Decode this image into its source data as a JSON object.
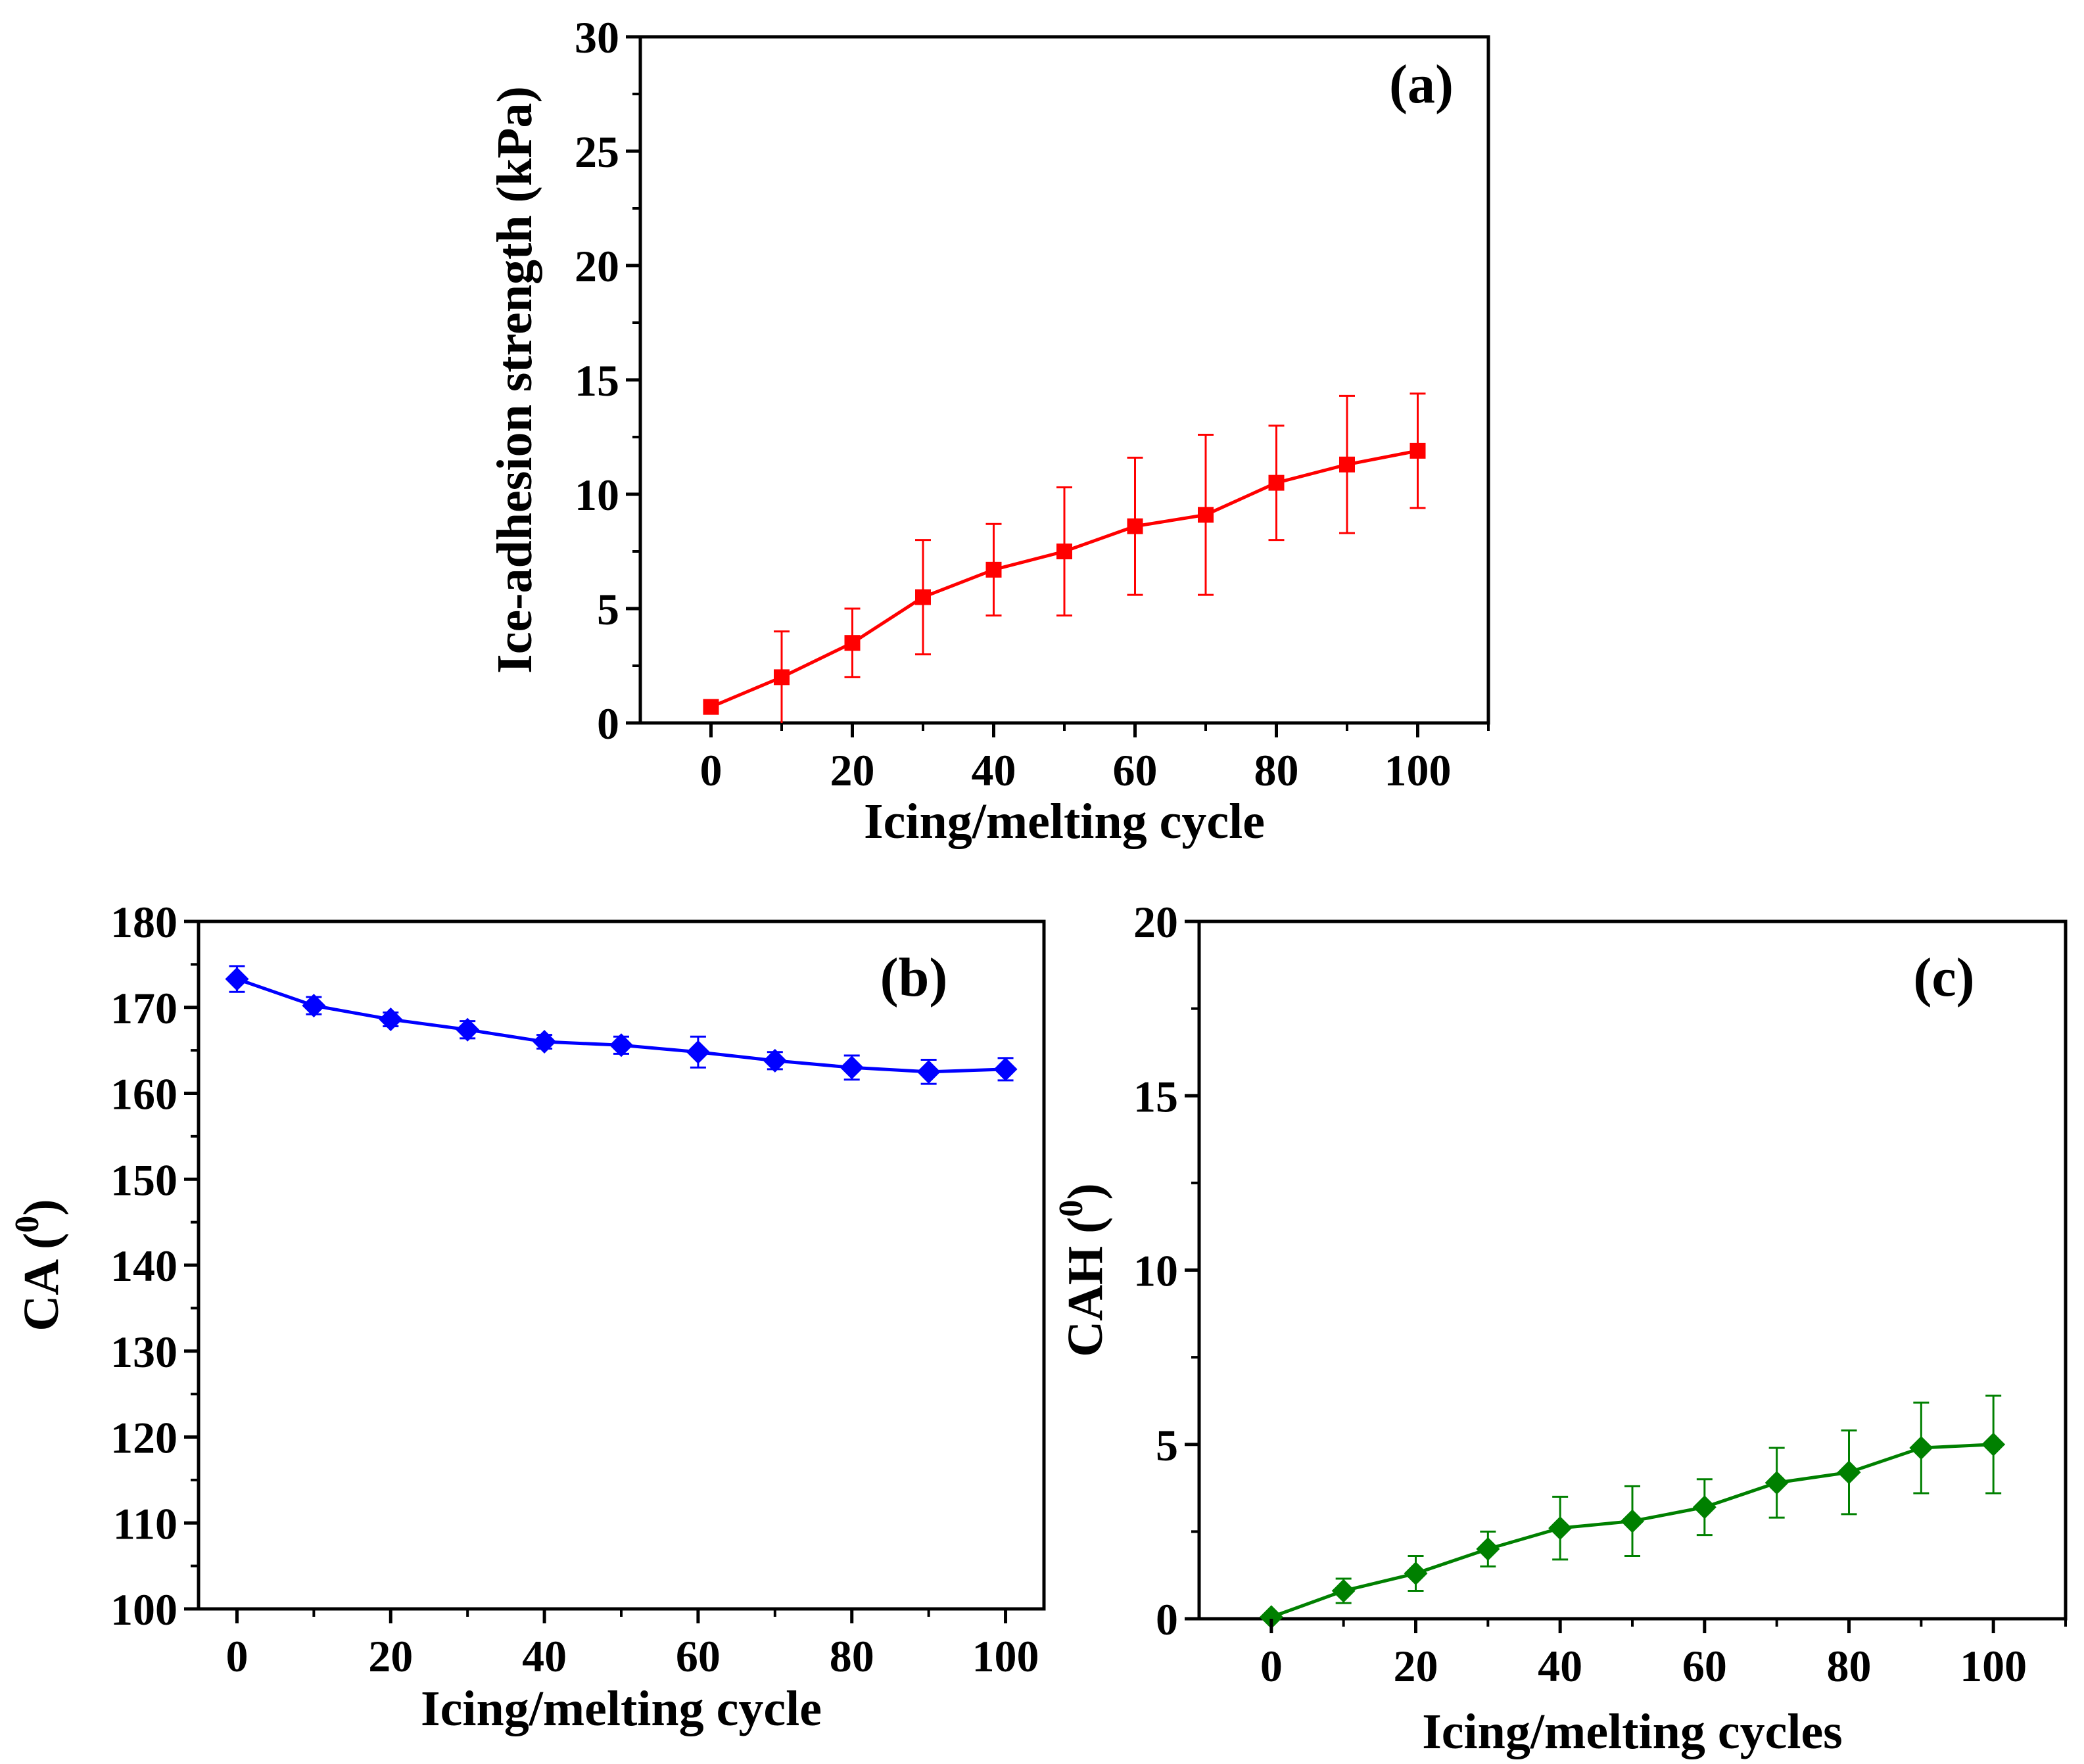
{
  "colors": {
    "panel_a": "#ff0000",
    "panel_b": "#0000ff",
    "panel_c": "#008000",
    "axis": "#000000",
    "background": "#ffffff"
  },
  "chart_data": [
    {
      "panel_label": "(a)",
      "type": "line",
      "marker": "square",
      "color": "#ff0000",
      "error_bars": true,
      "xlabel": "Icing/melting cycle",
      "ylabel": "Ice-adhesion strength (kPa)",
      "xlim": [
        -10,
        110
      ],
      "ylim": [
        0,
        30
      ],
      "x_ticks": [
        "0",
        "20",
        "40",
        "60",
        "80",
        "100"
      ],
      "y_ticks": [
        "0",
        "5",
        "10",
        "15",
        "20",
        "25",
        "30"
      ],
      "grid": false,
      "x": [
        0,
        10,
        20,
        30,
        40,
        50,
        60,
        70,
        80,
        90,
        100
      ],
      "y": [
        0.7,
        2.0,
        3.5,
        5.5,
        6.7,
        7.5,
        8.6,
        9.1,
        10.5,
        11.3,
        11.9
      ],
      "yerr": [
        0,
        2.0,
        1.5,
        2.5,
        2.0,
        2.8,
        3.0,
        3.5,
        2.5,
        3.0,
        2.5
      ]
    },
    {
      "panel_label": "(b)",
      "type": "line",
      "marker": "diamond",
      "color": "#0000ff",
      "error_bars": true,
      "xlabel": "Icing/melting cycle",
      "ylabel": "CA (0)",
      "ylabel_main": "CA (",
      "ylabel_sup": "0",
      "ylabel_end": ")",
      "xlim": [
        -5,
        105
      ],
      "ylim": [
        100,
        180
      ],
      "x_ticks": [
        "0",
        "20",
        "40",
        "60",
        "80",
        "100"
      ],
      "y_ticks": [
        "100",
        "110",
        "120",
        "130",
        "140",
        "150",
        "160",
        "170",
        "180"
      ],
      "grid": false,
      "x": [
        0,
        10,
        20,
        30,
        40,
        50,
        60,
        70,
        80,
        90,
        100
      ],
      "y": [
        173.3,
        170.2,
        168.6,
        167.4,
        166.0,
        165.6,
        164.8,
        163.8,
        163.0,
        162.5,
        162.8
      ],
      "yerr": [
        1.5,
        1.0,
        0.8,
        1.0,
        0.8,
        1.0,
        1.8,
        1.0,
        1.4,
        1.4,
        1.3
      ]
    },
    {
      "panel_label": "(c)",
      "type": "line",
      "marker": "diamond",
      "color": "#008000",
      "error_bars": true,
      "xlabel": "Icing/melting cycles",
      "ylabel": "CAH (0)",
      "ylabel_main": "CAH (",
      "ylabel_sup": "0",
      "ylabel_end": ")",
      "xlim": [
        -10,
        110
      ],
      "ylim": [
        0,
        20
      ],
      "x_ticks": [
        "0",
        "20",
        "40",
        "60",
        "80",
        "100"
      ],
      "y_ticks": [
        "0",
        "5",
        "10",
        "15",
        "20"
      ],
      "grid": false,
      "x": [
        0,
        10,
        20,
        30,
        40,
        50,
        60,
        70,
        80,
        90,
        100
      ],
      "y": [
        0.05,
        0.8,
        1.3,
        2.0,
        2.6,
        2.8,
        3.2,
        3.9,
        4.2,
        4.9,
        5.0
      ],
      "yerr": [
        0,
        0.35,
        0.5,
        0.5,
        0.9,
        1.0,
        0.8,
        1.0,
        1.2,
        1.3,
        1.4
      ]
    }
  ]
}
